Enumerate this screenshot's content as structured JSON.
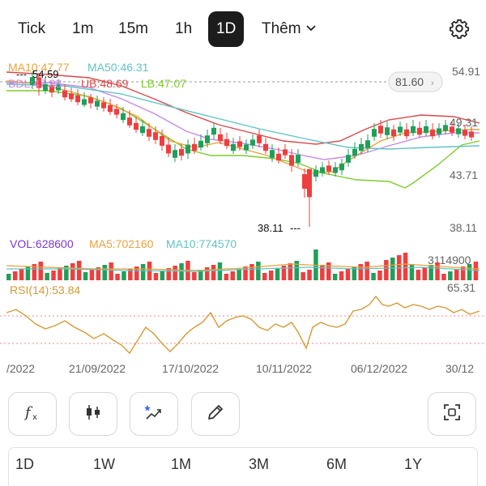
{
  "tabs": [
    {
      "label": "Tick",
      "active": false
    },
    {
      "label": "1m",
      "active": false
    },
    {
      "label": "15m",
      "active": false
    },
    {
      "label": "1h",
      "active": false
    },
    {
      "label": "1D",
      "active": true
    },
    {
      "label": "Thêm",
      "active": false
    }
  ],
  "settings_icon": "gear-icon",
  "chart": {
    "ma_legend": {
      "ma10": "MA10:47.77",
      "ma50": "MA50:46.31"
    },
    "bb_legend": {
      "bdl": "BDL:47.88",
      "ub": "UB:48.69",
      "lb": "LB:47.07"
    },
    "price_axis": [
      "54.91",
      "49.31",
      "43.71",
      "38.11"
    ],
    "current_price_tag": "81.60",
    "high_marker": "54.59",
    "low_marker": "38.11",
    "volume_legend": {
      "vol": "VOL:628600",
      "ma5": "MA5:702160",
      "ma10": "MA10:774570"
    },
    "volume_axis": "3114900",
    "rsi_legend": "RSI(14):53.84",
    "rsi_axis": "65.31",
    "date_axis": [
      "/2022",
      "21/09/2022",
      "17/10/2022",
      "10/11/2022",
      "06/12/2022",
      "30/12"
    ],
    "colors": {
      "up": "#1fa05a",
      "down": "#ef3e3e",
      "ma10": "#e8a33c",
      "ma50": "#61c3c4",
      "bdl": "#c58be8",
      "ub": "#d64a4a",
      "lb": "#7ecb2e",
      "rsi": "#d49a36"
    }
  },
  "tools": [
    {
      "icon": "function-icon"
    },
    {
      "icon": "candlestick-icon"
    },
    {
      "icon": "magic-chart-icon"
    },
    {
      "icon": "pencil-icon"
    },
    {
      "icon": "fullscreen-icon"
    }
  ],
  "periods": [
    "1D",
    "1W",
    "1M",
    "3M",
    "6M",
    "1Y"
  ]
}
